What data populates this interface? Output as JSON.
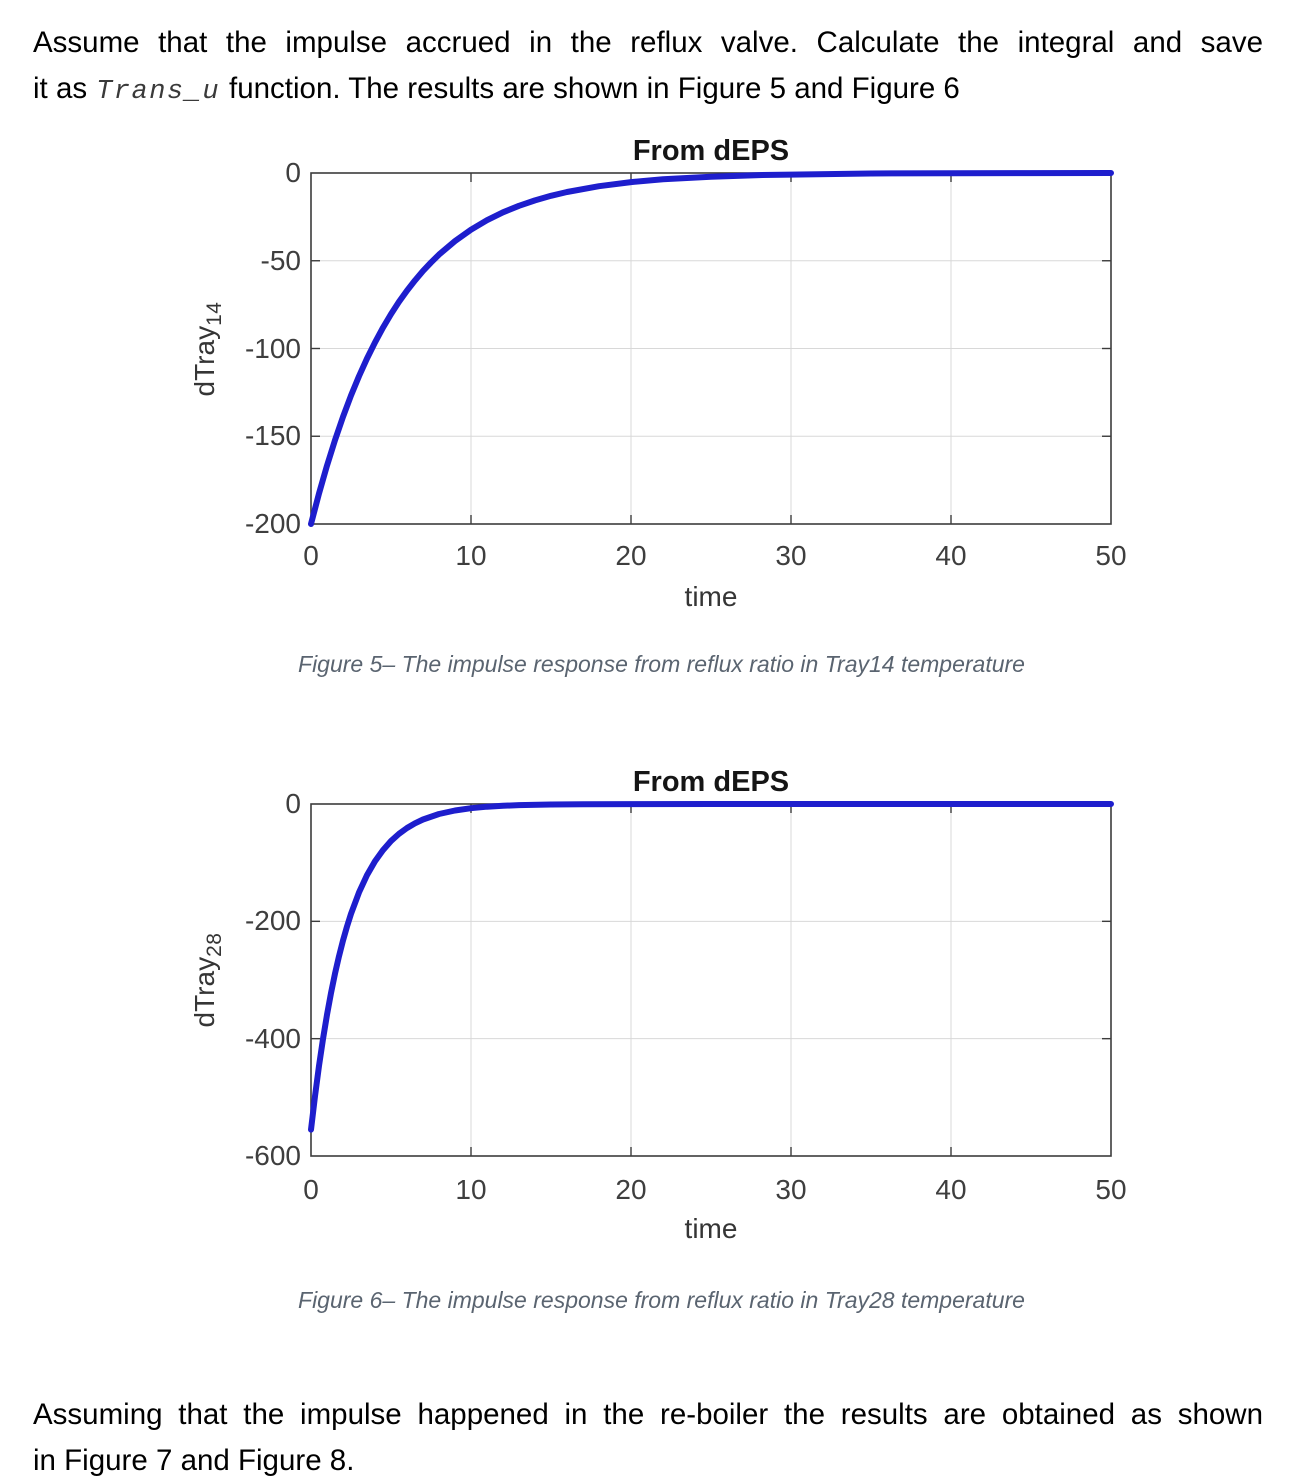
{
  "page": {
    "intro": {
      "line1": "Assume that the impulse accrued in the reflux valve. Calculate the integral and save",
      "line2_prefix": "it as",
      "line2_code": "Trans_u",
      "line2_suffix": "function. The results are shown in Figure 5 and Figure 6"
    },
    "outro": {
      "line1": "Assuming that the impulse happened in the re-boiler the results are obtained as shown",
      "line2": "in Figure 7 and Figure 8."
    }
  },
  "chart_data": [
    {
      "type": "line",
      "title": "From dEPS",
      "xlabel": "time",
      "ylabel_base": "dTray",
      "ylabel_sub": "14",
      "caption": "Figure 5– The impulse response from reflux ratio in Tray14 temperature",
      "xlim": [
        0,
        50
      ],
      "ylim": [
        -200,
        0
      ],
      "xticks": [
        0,
        10,
        20,
        30,
        40,
        50
      ],
      "yticks": [
        0,
        -50,
        -100,
        -150,
        -200
      ],
      "grid": true,
      "legend": "none",
      "line_color": "#1e1ecd",
      "axis_color": "#3c3c3c",
      "grid_color": "#d8d8d8",
      "series": [
        {
          "name": "impulse response dTray14",
          "x": [
            0,
            0.5,
            1,
            1.5,
            2,
            2.5,
            3,
            3.5,
            4,
            4.5,
            5,
            5.5,
            6,
            6.5,
            7,
            7.5,
            8,
            9,
            10,
            11,
            12,
            13,
            14,
            15,
            16,
            18,
            20,
            22,
            25,
            28,
            30,
            35,
            40,
            45,
            50
          ],
          "y": [
            -200,
            -182.6,
            -166.7,
            -152.2,
            -138.9,
            -126.8,
            -115.8,
            -105.7,
            -96.5,
            -88.1,
            -80.4,
            -73.4,
            -67.0,
            -61.2,
            -55.8,
            -51.0,
            -46.5,
            -38.8,
            -32.3,
            -26.9,
            -22.4,
            -18.7,
            -15.6,
            -13.0,
            -10.8,
            -7.5,
            -5.2,
            -3.6,
            -2.1,
            -1.2,
            -0.9,
            -0.3,
            -0.1,
            -0.05,
            -0.02
          ]
        }
      ]
    },
    {
      "type": "line",
      "title": "From dEPS",
      "xlabel": "time",
      "ylabel_base": "dTray",
      "ylabel_sub": "28",
      "caption": "Figure 6– The impulse response from reflux ratio in Tray28 temperature",
      "xlim": [
        0,
        50
      ],
      "ylim": [
        -600,
        0
      ],
      "xticks": [
        0,
        10,
        20,
        30,
        40,
        50
      ],
      "yticks": [
        0,
        -200,
        -400,
        -600
      ],
      "grid": true,
      "legend": "none",
      "line_color": "#1e1ecd",
      "axis_color": "#3c3c3c",
      "grid_color": "#d8d8d8",
      "series": [
        {
          "name": "impulse response dTray28",
          "x": [
            0,
            0.25,
            0.5,
            0.75,
            1,
            1.25,
            1.5,
            1.75,
            2,
            2.25,
            2.5,
            3,
            3.5,
            4,
            4.5,
            5,
            5.5,
            6,
            6.5,
            7,
            8,
            9,
            10,
            11,
            12,
            13,
            15,
            17,
            20,
            25,
            30,
            35,
            40,
            45,
            50
          ],
          "y": [
            -555,
            -498,
            -446.5,
            -400.6,
            -359.3,
            -322.3,
            -289.1,
            -259.4,
            -232.7,
            -208.8,
            -187.2,
            -150.7,
            -121.2,
            -97.5,
            -78.5,
            -63.1,
            -50.8,
            -40.9,
            -32.9,
            -26.4,
            -17.1,
            -11.1,
            -7.2,
            -4.6,
            -3.0,
            -1.9,
            -0.8,
            -0.3,
            -0.1,
            0,
            0,
            0,
            0,
            0,
            0
          ]
        }
      ]
    }
  ]
}
